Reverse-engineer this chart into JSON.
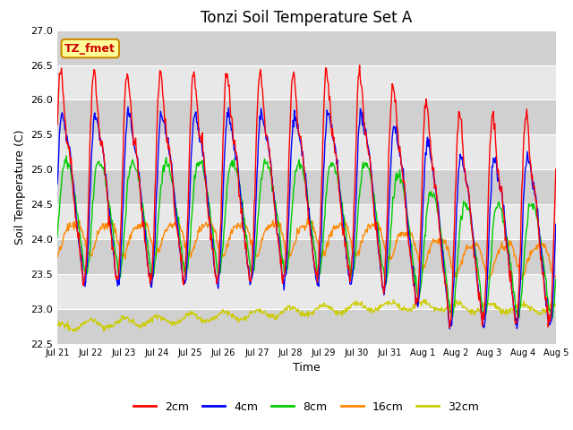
{
  "title": "Tonzi Soil Temperature Set A",
  "xlabel": "Time",
  "ylabel": "Soil Temperature (C)",
  "ylim": [
    22.5,
    27.0
  ],
  "yticks": [
    22.5,
    23.0,
    23.5,
    24.0,
    24.5,
    25.0,
    25.5,
    26.0,
    26.5,
    27.0
  ],
  "colors": {
    "2cm": "#ff0000",
    "4cm": "#0000ff",
    "8cm": "#00cc00",
    "16cm": "#ff8800",
    "32cm": "#cccc00"
  },
  "legend_labels": [
    "2cm",
    "4cm",
    "8cm",
    "16cm",
    "32cm"
  ],
  "annotation_text": "TZ_fmet",
  "annotation_box_facecolor": "#ffff99",
  "annotation_box_edgecolor": "#cc8800",
  "annotation_text_color": "#cc0000",
  "plot_bg_color": "#e8e8e8",
  "band_light": "#e8e8e8",
  "band_dark": "#d0d0d0",
  "line_width": 1.0,
  "tick_labels": [
    "Jul 21",
    "Jul 22",
    "Jul 23",
    "Jul 24",
    "Jul 25",
    "Jul 26",
    "Jul 27",
    "Jul 28",
    "Jul 29",
    "Jul 30",
    "Jul 31",
    "Aug 1",
    "Aug 2",
    "Aug 3",
    "Aug 4",
    "Aug 5"
  ],
  "n_days": 15,
  "spd": 48
}
